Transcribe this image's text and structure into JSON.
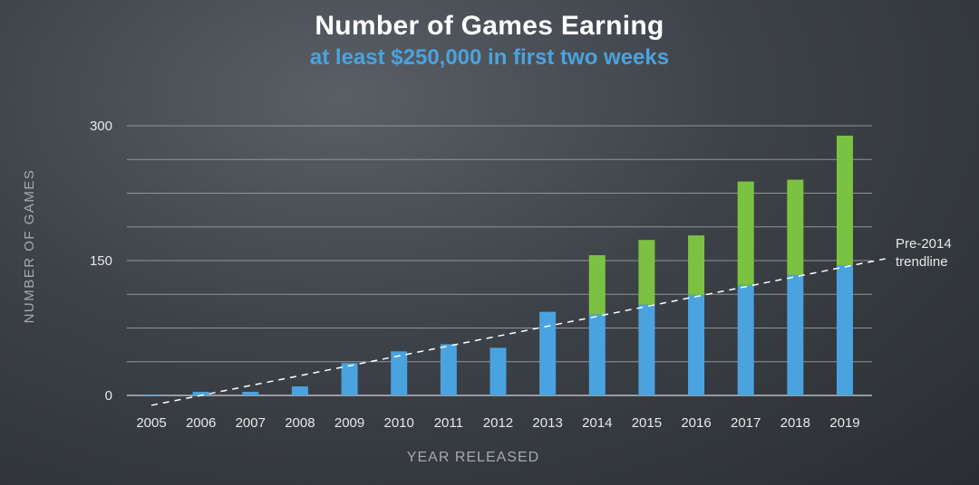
{
  "title": "Number of Games Earning",
  "subtitle": "at least $250,000 in first two weeks",
  "colors": {
    "base": "#4aa3df",
    "excess": "#7cc242",
    "grid": "#9a9ea3",
    "text": "#e8e8e8",
    "muted": "#a5a9ae"
  },
  "chart_data": {
    "type": "bar",
    "stacked": true,
    "xlabel": "YEAR RELEASED",
    "ylabel": "NUMBER OF GAMES",
    "ylim": [
      0,
      300
    ],
    "yticks": [
      0,
      150,
      300
    ],
    "grid": true,
    "categories": [
      "2005",
      "2006",
      "2007",
      "2008",
      "2009",
      "2010",
      "2011",
      "2012",
      "2013",
      "2014",
      "2015",
      "2016",
      "2017",
      "2018",
      "2019"
    ],
    "series": [
      {
        "color": "#4aa3df",
        "values": [
          1,
          4,
          4,
          10,
          36,
          49,
          57,
          53,
          93,
          90,
          101,
          112,
          123,
          134,
          145
        ]
      },
      {
        "color": "#7cc242",
        "values": [
          0,
          0,
          0,
          0,
          0,
          0,
          0,
          0,
          0,
          66,
          72,
          66,
          115,
          106,
          144
        ]
      }
    ],
    "trendline": {
      "label_line1": "Pre-2014",
      "label_line2": "trendline",
      "start": [
        2005,
        -11
      ],
      "end": [
        2020,
        152
      ]
    }
  }
}
